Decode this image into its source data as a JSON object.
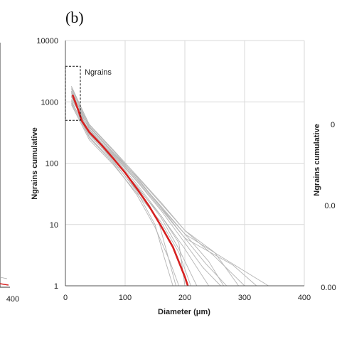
{
  "panel_label": "(b)",
  "left_neighbor": {
    "x_tick": "400"
  },
  "right_neighbor": {
    "y_label": "Ngrains cumulative",
    "ticks": [
      "0",
      "0.0",
      "0.00"
    ]
  },
  "chart_data": {
    "type": "line",
    "title": "",
    "xlabel": "Diameter (μm)",
    "ylabel": "Ngrains cumulative",
    "xlim": [
      0,
      400
    ],
    "ylim": [
      1,
      10000
    ],
    "y_scale": "log",
    "grid": "on",
    "x_ticks": [
      0,
      100,
      200,
      300,
      400
    ],
    "x_tick_labels": [
      "0",
      "100",
      "200",
      "300",
      "400"
    ],
    "y_ticks": [
      1,
      10,
      100,
      1000,
      10000
    ],
    "y_tick_labels": [
      "1",
      "10",
      "100",
      "1000",
      "10000"
    ],
    "annotation": {
      "label": "Ngrains",
      "box_x": [
        0,
        25
      ],
      "box_y": [
        500,
        3800
      ]
    },
    "series": [
      {
        "color": "#d62020",
        "x": [
          12,
          20,
          28,
          40,
          60,
          80,
          100,
          120,
          140,
          160,
          180,
          200,
          205
        ],
        "y": [
          1300,
          800,
          480,
          320,
          200,
          120,
          70,
          38,
          20,
          9.5,
          4.3,
          1.4,
          1
        ]
      },
      {
        "color": "#b5b5b5",
        "x": [
          10,
          40,
          80,
          120,
          160,
          200,
          240
        ],
        "y": [
          1500,
          350,
          130,
          45,
          14,
          4,
          1
        ]
      },
      {
        "color": "#b5b5b5",
        "x": [
          10,
          40,
          80,
          120,
          160,
          200,
          280,
          320
        ],
        "y": [
          1800,
          420,
          160,
          58,
          19,
          6,
          2.2,
          1
        ]
      },
      {
        "color": "#b5b5b5",
        "x": [
          10,
          40,
          80,
          120,
          160,
          200,
          260,
          340
        ],
        "y": [
          1100,
          380,
          150,
          55,
          20,
          7,
          3,
          1
        ]
      },
      {
        "color": "#b5b5b5",
        "x": [
          10,
          40,
          80,
          120,
          150,
          175,
          190
        ],
        "y": [
          950,
          260,
          100,
          30,
          9,
          2.5,
          1
        ]
      },
      {
        "color": "#b5b5b5",
        "x": [
          10,
          40,
          80,
          120,
          150,
          165,
          180
        ],
        "y": [
          1400,
          300,
          110,
          34,
          10,
          3,
          1
        ]
      },
      {
        "color": "#b5b5b5",
        "x": [
          10,
          40,
          80,
          120,
          160,
          200,
          230,
          260
        ],
        "y": [
          1200,
          330,
          135,
          50,
          17,
          5,
          2,
          1
        ]
      },
      {
        "color": "#b5b5b5",
        "x": [
          10,
          40,
          80,
          120,
          160,
          200,
          250,
          300
        ],
        "y": [
          1600,
          400,
          150,
          60,
          22,
          8,
          3,
          1
        ]
      },
      {
        "color": "#b5b5b5",
        "x": [
          10,
          40,
          80,
          120,
          160,
          190,
          210
        ],
        "y": [
          900,
          240,
          95,
          32,
          11,
          3.5,
          1
        ]
      },
      {
        "color": "#b5b5b5",
        "x": [
          10,
          40,
          80,
          120,
          160,
          190,
          220
        ],
        "y": [
          1000,
          290,
          115,
          42,
          13,
          4,
          1
        ]
      },
      {
        "color": "#b5b5b5",
        "x": [
          10,
          40,
          80,
          120,
          160,
          200,
          235,
          270
        ],
        "y": [
          1300,
          360,
          140,
          52,
          18,
          6,
          2.3,
          1
        ]
      },
      {
        "color": "#b5b5b5",
        "x": [
          10,
          40,
          80,
          120,
          160,
          190,
          200
        ],
        "y": [
          1250,
          310,
          120,
          40,
          14,
          5,
          1
        ]
      },
      {
        "color": "#b5b5b5",
        "x": [
          10,
          40,
          80,
          120,
          160,
          200,
          250,
          290
        ],
        "y": [
          1700,
          430,
          165,
          62,
          23,
          8,
          3.5,
          1
        ]
      },
      {
        "color": "#b5b5b5",
        "x": [
          10,
          40,
          80,
          120,
          155,
          170,
          185
        ],
        "y": [
          1050,
          270,
          105,
          36,
          12,
          3.5,
          1
        ]
      },
      {
        "color": "#b5b5b5",
        "x": [
          10,
          40,
          80,
          120,
          160,
          200,
          240,
          265
        ],
        "y": [
          1450,
          390,
          145,
          55,
          19,
          7,
          2.5,
          1
        ]
      }
    ]
  }
}
